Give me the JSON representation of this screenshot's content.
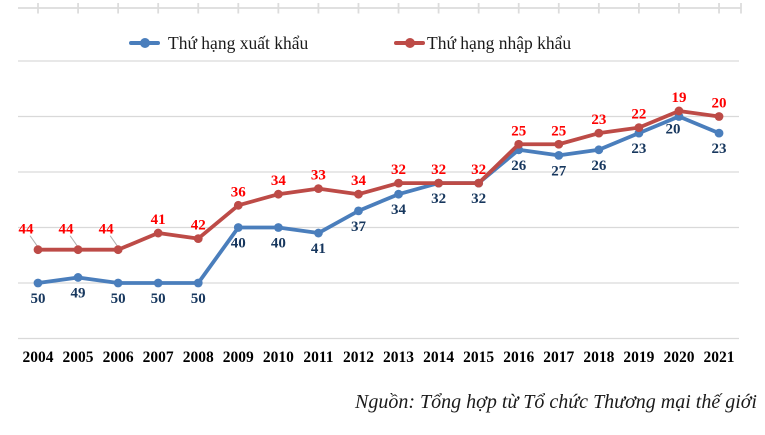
{
  "legend": {
    "export_label": "Thứ hạng xuất khẩu",
    "import_label": "Thứ hạng nhập khẩu"
  },
  "source_note": "Nguồn: Tổng hợp từ Tổ chức Thương mại thế giới",
  "colors": {
    "export_line": "#4a7ebc",
    "import_line": "#bd4b47",
    "export_label_text": "#17375e",
    "import_label_text": "#fe0000",
    "gridline": "#d9d9d9",
    "top_axis": "#dcdcdc",
    "leader_line": "#b0b0b0",
    "axis_text": "#000000"
  },
  "chart_data": {
    "type": "line",
    "categories": [
      "2004",
      "2005",
      "2006",
      "2007",
      "2008",
      "2009",
      "2010",
      "2011",
      "2012",
      "2013",
      "2014",
      "2015",
      "2016",
      "2017",
      "2018",
      "2019",
      "2020",
      "2021"
    ],
    "series": [
      {
        "id": "export",
        "name": "Thứ hạng xuất khẩu",
        "values": [
          50,
          49,
          50,
          50,
          50,
          40,
          40,
          41,
          37,
          34,
          32,
          32,
          26,
          27,
          26,
          23,
          20,
          23
        ]
      },
      {
        "id": "import",
        "name": "Thứ hạng nhập khẩu",
        "values": [
          44,
          44,
          44,
          41,
          42,
          36,
          34,
          33,
          34,
          32,
          32,
          32,
          25,
          25,
          23,
          22,
          19,
          20
        ]
      }
    ],
    "title": "",
    "xlabel": "",
    "ylabel": "",
    "y_axis": {
      "reversed": true,
      "min": 10,
      "max": 60,
      "gridline_step": 10,
      "tick_labels_visible": false
    },
    "grid": true,
    "legend_position": "top",
    "data_labels": "all points"
  }
}
